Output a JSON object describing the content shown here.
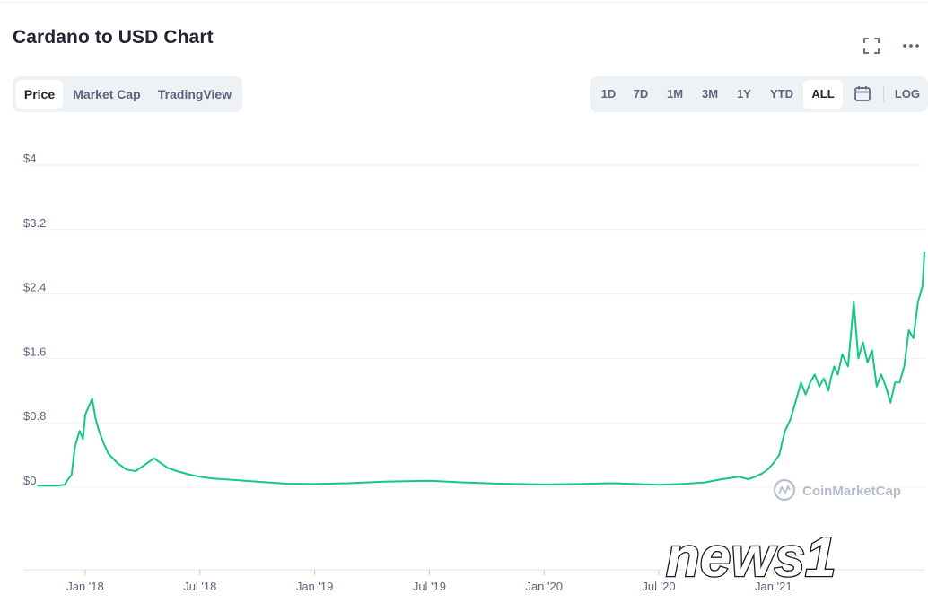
{
  "header": {
    "title": "Cardano to USD Chart"
  },
  "view_tabs": [
    {
      "label": "Price",
      "active": true
    },
    {
      "label": "Market Cap",
      "active": false
    },
    {
      "label": "TradingView",
      "active": false
    }
  ],
  "range_buttons": [
    {
      "label": "1D",
      "active": false
    },
    {
      "label": "7D",
      "active": false
    },
    {
      "label": "1M",
      "active": false
    },
    {
      "label": "3M",
      "active": false
    },
    {
      "label": "1Y",
      "active": false
    },
    {
      "label": "YTD",
      "active": false
    },
    {
      "label": "ALL",
      "active": true
    }
  ],
  "log_label": "LOG",
  "icons": {
    "fullscreen": "fullscreen-icon",
    "more": "more-options-icon",
    "calendar": "calendar-icon"
  },
  "watermark": {
    "text": "CoinMarketCap"
  },
  "overlay_logo": {
    "text": "news1"
  },
  "colors": {
    "line": "#16c784",
    "grid": "#eef0f3",
    "axis_text": "#58667e",
    "title": "#222531"
  },
  "chart_data": {
    "type": "line",
    "title": "",
    "xlabel": "",
    "ylabel": "",
    "y_ticks": [
      {
        "value": 0,
        "label": "$0"
      },
      {
        "value": 0.8,
        "label": "$0.8"
      },
      {
        "value": 1.6,
        "label": "$1.6"
      },
      {
        "value": 2.4,
        "label": "$2.4"
      },
      {
        "value": 3.2,
        "label": "$3.2"
      },
      {
        "value": 4,
        "label": "$4"
      }
    ],
    "x_ticks": [
      "Jan '18",
      "Jul '18",
      "Jan '19",
      "Jul '19",
      "Jan '20",
      "Jul '20",
      "Jan '21"
    ],
    "ylim": [
      0,
      4
    ],
    "grid": true,
    "series": [
      {
        "x_index": [
          -0.42,
          -0.25,
          -0.18,
          -0.15,
          -0.12,
          -0.09,
          -0.05,
          -0.02,
          0.0,
          0.03,
          0.06,
          0.09,
          0.12,
          0.16,
          0.2,
          0.28,
          0.36,
          0.44,
          0.52,
          0.6,
          0.66,
          0.72,
          0.8,
          0.9,
          1.0,
          1.1,
          1.3,
          1.5,
          1.75,
          2.0,
          2.3,
          2.6,
          3.0,
          3.3,
          3.6,
          4.0,
          4.3,
          4.6,
          5.0,
          5.2,
          5.4,
          5.55,
          5.7,
          5.78,
          5.84,
          5.9,
          5.95,
          6.0,
          6.05,
          6.1,
          6.15,
          6.2,
          6.24,
          6.28,
          6.32,
          6.36,
          6.4,
          6.44,
          6.48,
          6.5,
          6.53,
          6.56,
          6.6,
          6.65,
          6.7,
          6.74,
          6.78,
          6.82,
          6.86,
          6.9,
          6.94,
          6.98,
          7.02,
          7.06,
          7.1,
          7.14,
          7.18,
          7.22,
          7.26,
          7.3,
          7.34
        ],
        "values": [
          0.02,
          0.02,
          0.03,
          0.1,
          0.15,
          0.5,
          0.7,
          0.6,
          0.9,
          1.0,
          1.1,
          0.85,
          0.7,
          0.55,
          0.42,
          0.3,
          0.22,
          0.2,
          0.28,
          0.36,
          0.3,
          0.24,
          0.2,
          0.16,
          0.13,
          0.11,
          0.09,
          0.07,
          0.045,
          0.04,
          0.05,
          0.07,
          0.08,
          0.06,
          0.045,
          0.035,
          0.04,
          0.05,
          0.03,
          0.04,
          0.06,
          0.1,
          0.13,
          0.1,
          0.13,
          0.17,
          0.22,
          0.3,
          0.4,
          0.7,
          0.85,
          1.1,
          1.3,
          1.15,
          1.3,
          1.4,
          1.25,
          1.35,
          1.2,
          1.35,
          1.5,
          1.4,
          1.65,
          1.5,
          2.3,
          1.6,
          1.8,
          1.55,
          1.7,
          1.25,
          1.4,
          1.25,
          1.05,
          1.3,
          1.3,
          1.5,
          1.95,
          1.85,
          2.3,
          2.5,
          2.92
        ]
      }
    ]
  }
}
